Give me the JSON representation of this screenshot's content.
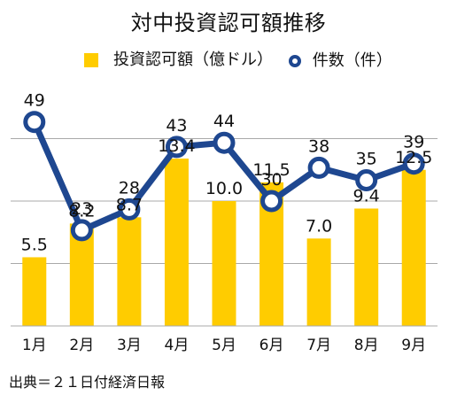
{
  "title": "対中投資認可額推移",
  "legend": {
    "bar": "投資認可額（億ドル）",
    "line": "件数（件）"
  },
  "source": "出典＝２１日付経済日報",
  "colors": {
    "bar": "#ffcc00",
    "line": "#1e4790",
    "grid": "#a9a9a9",
    "text": "#111111",
    "background": "#ffffff"
  },
  "chart_data": {
    "type": "bar",
    "title": "対中投資認可額推移",
    "categories": [
      "1月",
      "2月",
      "3月",
      "4月",
      "5月",
      "6月",
      "7月",
      "8月",
      "9月"
    ],
    "series": [
      {
        "name": "投資認可額（億ドル）",
        "type": "bar",
        "values": [
          5.5,
          8.2,
          8.7,
          13.4,
          10.0,
          11.5,
          7.0,
          9.4,
          12.5
        ],
        "labels": [
          "5.5",
          "8.2",
          "8.7",
          "13.4",
          "10.0",
          "11.5",
          "7.0",
          "9.4",
          "12.5"
        ]
      },
      {
        "name": "件数（件）",
        "type": "line",
        "values": [
          49,
          23,
          28,
          43,
          44,
          30,
          38,
          35,
          39
        ],
        "labels": [
          "49",
          "23",
          "28",
          "43",
          "44",
          "30",
          "38",
          "35",
          "39"
        ]
      }
    ],
    "bar_ylim": [
      0,
      20
    ],
    "line_ylim": [
      0,
      60
    ],
    "grid": true,
    "legend_position": "top"
  }
}
